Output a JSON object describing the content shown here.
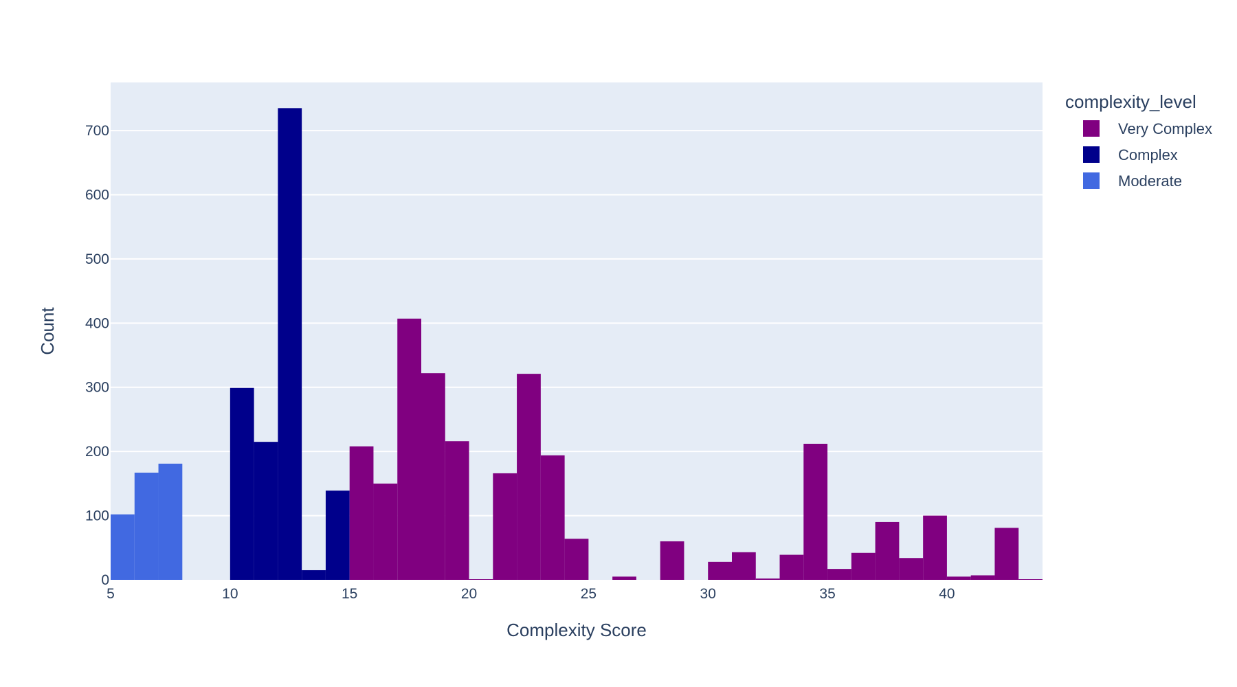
{
  "chart_data": {
    "type": "bar",
    "xlabel": "Complexity Score",
    "ylabel": "Count",
    "xlim": [
      5,
      44
    ],
    "ylim": [
      0,
      775
    ],
    "xticks": [
      5,
      10,
      15,
      20,
      25,
      30,
      35,
      40
    ],
    "yticks": [
      0,
      100,
      200,
      300,
      400,
      500,
      600,
      700
    ],
    "bin_width": 1,
    "grid": true,
    "plot_background": "#e5ecf6",
    "legend": {
      "title": "complexity_level",
      "placement": "top-right",
      "entries": [
        {
          "name": "Very Complex",
          "color": "#800080"
        },
        {
          "name": "Complex",
          "color": "#00008b"
        },
        {
          "name": "Moderate",
          "color": "#4169e1"
        }
      ]
    },
    "series": [
      {
        "name": "Moderate",
        "color": "#4169e1",
        "bins": [
          {
            "x": 5,
            "value": 102
          },
          {
            "x": 6,
            "value": 167
          },
          {
            "x": 7,
            "value": 181
          }
        ]
      },
      {
        "name": "Complex",
        "color": "#00008b",
        "bins": [
          {
            "x": 10,
            "value": 299
          },
          {
            "x": 11,
            "value": 215
          },
          {
            "x": 12,
            "value": 735
          },
          {
            "x": 13,
            "value": 15
          },
          {
            "x": 14,
            "value": 139
          }
        ]
      },
      {
        "name": "Very Complex",
        "color": "#800080",
        "bins": [
          {
            "x": 15,
            "value": 208
          },
          {
            "x": 16,
            "value": 150
          },
          {
            "x": 17,
            "value": 407
          },
          {
            "x": 18,
            "value": 322
          },
          {
            "x": 19,
            "value": 216
          },
          {
            "x": 20,
            "value": 1
          },
          {
            "x": 21,
            "value": 166
          },
          {
            "x": 22,
            "value": 321
          },
          {
            "x": 23,
            "value": 194
          },
          {
            "x": 24,
            "value": 64
          },
          {
            "x": 25,
            "value": 0
          },
          {
            "x": 26,
            "value": 5
          },
          {
            "x": 27,
            "value": 0
          },
          {
            "x": 28,
            "value": 60
          },
          {
            "x": 29,
            "value": 0
          },
          {
            "x": 30,
            "value": 28
          },
          {
            "x": 31,
            "value": 43
          },
          {
            "x": 32,
            "value": 2
          },
          {
            "x": 33,
            "value": 39
          },
          {
            "x": 34,
            "value": 212
          },
          {
            "x": 35,
            "value": 17
          },
          {
            "x": 36,
            "value": 42
          },
          {
            "x": 37,
            "value": 90
          },
          {
            "x": 38,
            "value": 34
          },
          {
            "x": 39,
            "value": 100
          },
          {
            "x": 40,
            "value": 5
          },
          {
            "x": 41,
            "value": 7
          },
          {
            "x": 42,
            "value": 81
          },
          {
            "x": 43,
            "value": 1
          }
        ]
      }
    ]
  }
}
